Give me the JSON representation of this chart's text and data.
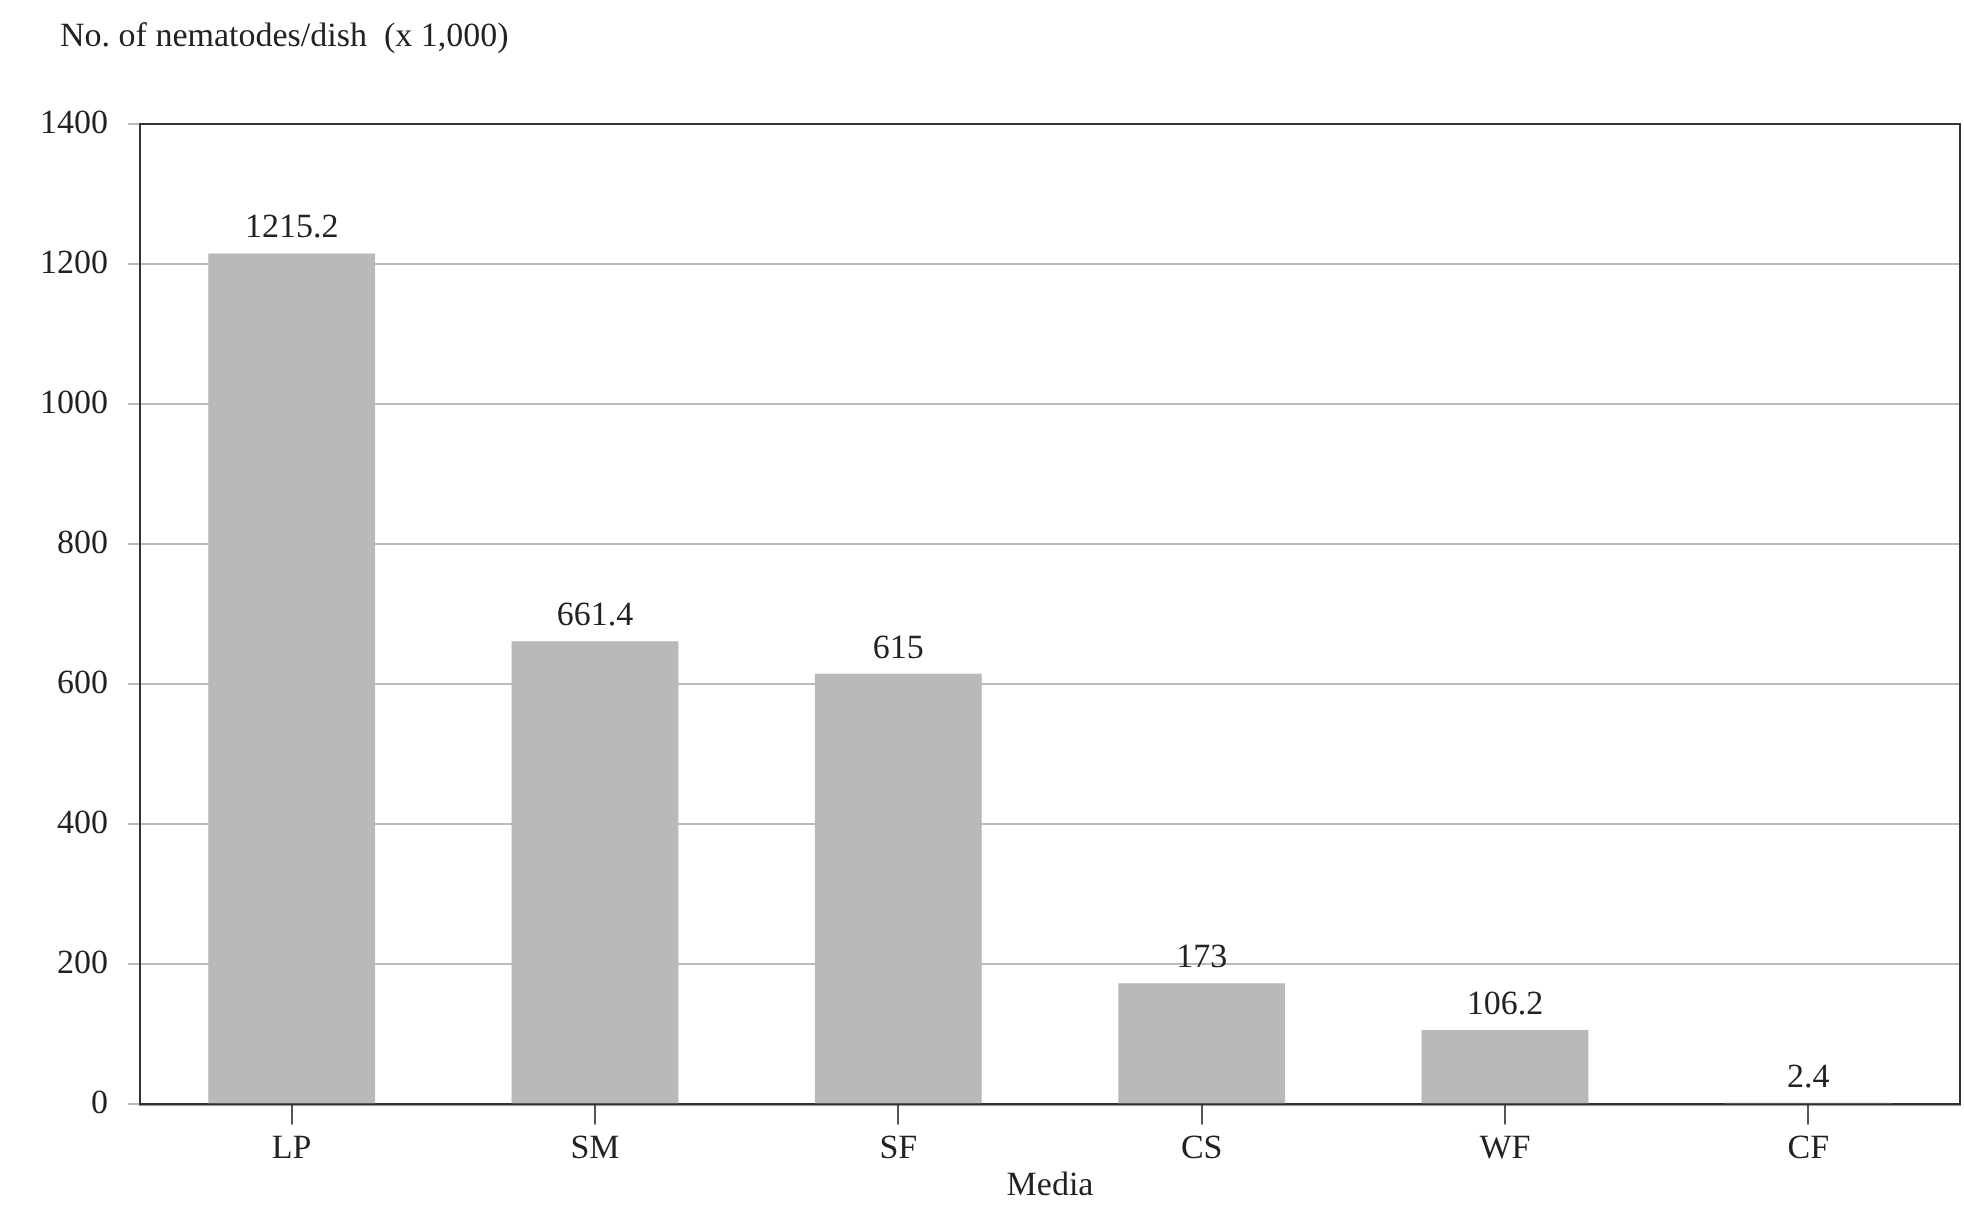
{
  "chart_data": {
    "type": "bar",
    "ylabel": "No. of nematodes/dish  (x 1,000)",
    "xlabel": "Media",
    "categories": [
      "LP",
      "SM",
      "SF",
      "CS",
      "WF",
      "CF"
    ],
    "values": [
      1215.2,
      661.4,
      615,
      173,
      106.2,
      2.4
    ],
    "color": "#b9b9b9",
    "ylim": [
      0,
      1400
    ],
    "yticks": [
      0,
      200,
      400,
      600,
      800,
      1000,
      1200,
      1400
    ],
    "grid": "y",
    "data_labels": true,
    "legend": false
  }
}
